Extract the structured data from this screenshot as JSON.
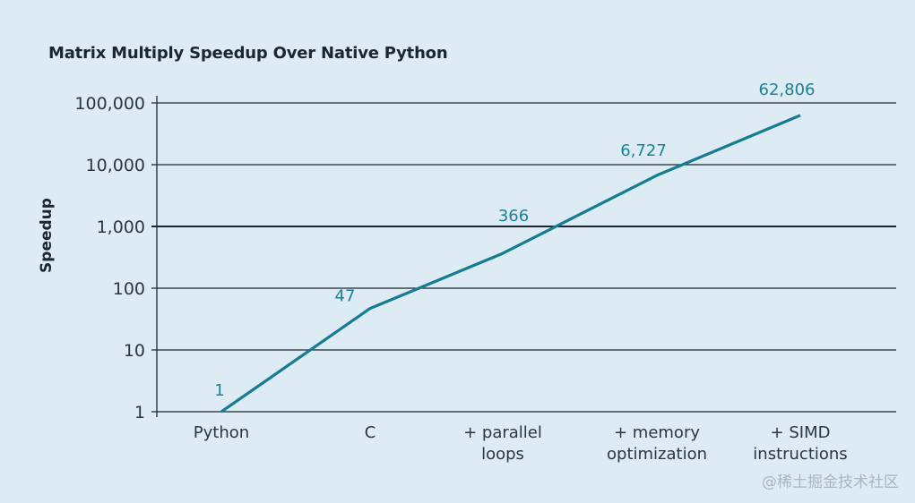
{
  "chart_data": {
    "type": "line",
    "title": "Matrix Multiply Speedup Over Native Python",
    "xlabel": "",
    "ylabel": "Speedup",
    "yscale": "log",
    "ylim": [
      1,
      100000
    ],
    "yticks": [
      1,
      10,
      100,
      1000,
      10000,
      100000
    ],
    "ytick_labels": [
      "1",
      "10",
      "100",
      "1,000",
      "10,000",
      "100,000"
    ],
    "grid": true,
    "categories": [
      [
        "Python"
      ],
      [
        "C"
      ],
      [
        "+ parallel",
        "loops"
      ],
      [
        "+ memory",
        "optimization"
      ],
      [
        "+ SIMD",
        "instructions"
      ]
    ],
    "series": [
      {
        "name": "Speedup",
        "color": "#167c92",
        "values": [
          1,
          47,
          366,
          6727,
          62806
        ],
        "labels": [
          "1",
          "47",
          "366",
          "6,727",
          "62,806"
        ]
      }
    ]
  },
  "watermark": "@稀土掘金技术社区"
}
